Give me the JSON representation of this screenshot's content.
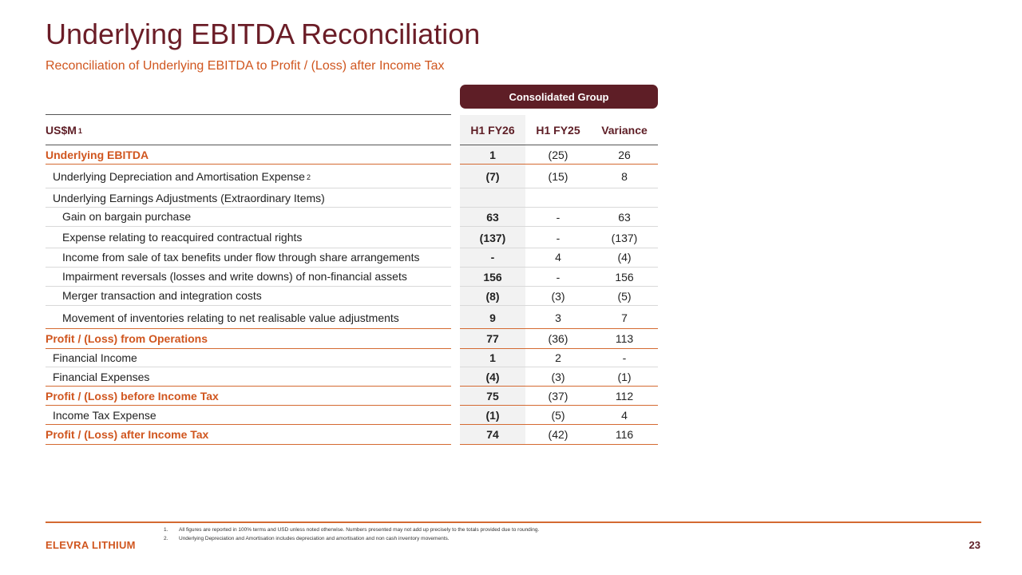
{
  "title": "Underlying EBITDA Reconciliation",
  "subtitle": "Reconciliation of Underlying EBITDA to Profit / (Loss) after Income Tax",
  "group_header": "Consolidated Group",
  "columns": {
    "label": "US$M",
    "label_sup": "1",
    "c1": "H1 FY26",
    "c2": "H1 FY25",
    "c3": "Variance"
  },
  "rows": [
    {
      "label": "Underlying EBITDA",
      "c1": "1",
      "c2": "(25)",
      "c3": "26"
    },
    {
      "label": "Underlying Depreciation and Amortisation Expense",
      "sup": "2",
      "c1": "(7)",
      "c2": "(15)",
      "c3": "8"
    },
    {
      "label": "Underlying Earnings Adjustments (Extraordinary Items)",
      "c1": "",
      "c2": "",
      "c3": ""
    },
    {
      "label": "Gain on bargain purchase",
      "c1": "63",
      "c2": "-",
      "c3": "63"
    },
    {
      "label": "Expense relating to reacquired contractual rights",
      "c1": "(137)",
      "c2": "-",
      "c3": "(137)"
    },
    {
      "label": "Income from sale of tax benefits under flow through share arrangements",
      "c1": "-",
      "c2": "4",
      "c3": "(4)"
    },
    {
      "label": "Impairment reversals (losses and write downs) of non-financial assets",
      "c1": "156",
      "c2": "-",
      "c3": "156"
    },
    {
      "label": "Merger transaction and integration costs",
      "c1": "(8)",
      "c2": "(3)",
      "c3": "(5)"
    },
    {
      "label": "Movement of inventories relating to net realisable value adjustments",
      "c1": "9",
      "c2": "3",
      "c3": "7"
    },
    {
      "label": "Profit / (Loss) from Operations",
      "c1": "77",
      "c2": "(36)",
      "c3": "113"
    },
    {
      "label": "Financial Income",
      "c1": "1",
      "c2": "2",
      "c3": "-"
    },
    {
      "label": "Financial Expenses",
      "c1": "(4)",
      "c2": "(3)",
      "c3": "(1)"
    },
    {
      "label": "Profit / (Loss) before Income Tax",
      "c1": "75",
      "c2": "(37)",
      "c3": "112"
    },
    {
      "label": "Income Tax Expense",
      "c1": "(1)",
      "c2": "(5)",
      "c3": "4"
    },
    {
      "label": "Profit / (Loss) after Income Tax",
      "c1": "74",
      "c2": "(42)",
      "c3": "116"
    }
  ],
  "footnotes": [
    {
      "num": "1.",
      "text": "All figures are reported in 100% terms and USD unless noted otherwise. Numbers presented may not add up precisely to the totals provided due to rounding."
    },
    {
      "num": "2.",
      "text": "Underlying Depreciation and Amortisation includes depreciation and amortisation and non cash inventory movements."
    }
  ],
  "brand": "ELEVRA LITHIUM",
  "page_number": "23",
  "colors": {
    "title": "#6b1d27",
    "accent_orange": "#d0561f",
    "header_fill": "#5e1e26",
    "shade": "#f2f2f2"
  }
}
